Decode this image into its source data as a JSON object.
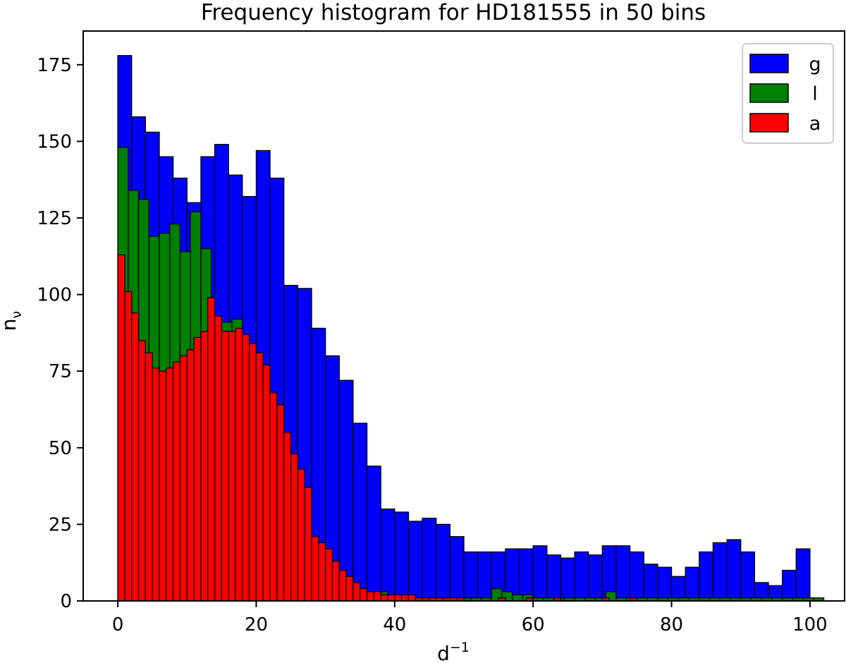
{
  "chart_data": {
    "type": "bar",
    "title": "Frequency histogram for HD181555 in 50 bins",
    "xlabel": "d",
    "xlabel_superscript": "−1",
    "ylabel": "n",
    "ylabel_subscript": "ν",
    "xlim": [
      -5,
      105
    ],
    "ylim": [
      0,
      186
    ],
    "xticks": [
      0,
      20,
      40,
      60,
      80,
      100
    ],
    "yticks": [
      0,
      25,
      50,
      75,
      100,
      125,
      150,
      175
    ],
    "grid": false,
    "legend_position": "top-right",
    "series": [
      {
        "name": "g",
        "color": "#0000ff",
        "bin_start": 0,
        "bin_width": 2,
        "values": [
          178,
          158,
          153,
          145,
          138,
          130,
          145,
          149,
          139,
          132,
          147,
          138,
          103,
          102,
          89,
          80,
          72,
          58,
          44,
          30,
          29,
          26,
          27,
          25,
          21,
          16,
          16,
          16,
          17,
          17,
          18,
          15,
          14,
          16,
          15,
          18,
          18,
          16,
          12,
          11,
          8,
          11,
          16,
          19,
          20,
          16,
          6,
          5,
          10,
          17
        ]
      },
      {
        "name": "l",
        "color": "#008000",
        "bin_start": 0,
        "bin_width": 1.5,
        "values": [
          148,
          134,
          131,
          119,
          120,
          123,
          114,
          127,
          115,
          92,
          91,
          92,
          69,
          55,
          53,
          40,
          26,
          17,
          10,
          5,
          4,
          8,
          3,
          2,
          3,
          3,
          1,
          1,
          1,
          1,
          1,
          1,
          1,
          1,
          1,
          1,
          4,
          3,
          2,
          2,
          1,
          1,
          1,
          1,
          1,
          1,
          1,
          3,
          1,
          1,
          1,
          1,
          1,
          1,
          1,
          1,
          1,
          1,
          1,
          1,
          1,
          1,
          1,
          1,
          1,
          1,
          1,
          1
        ]
      },
      {
        "name": "a",
        "color": "#ff0000",
        "bin_start": 0,
        "bin_width": 1,
        "values": [
          113,
          101,
          94,
          85,
          81,
          76,
          75,
          76,
          78,
          80,
          82,
          86,
          88,
          99,
          93,
          88,
          88,
          89,
          87,
          84,
          81,
          77,
          68,
          64,
          55,
          48,
          43,
          37,
          21,
          19,
          17,
          13,
          10,
          8,
          6,
          4,
          3,
          3,
          2,
          2,
          2,
          2,
          2,
          1,
          1,
          1,
          1,
          1,
          1,
          1,
          0,
          0,
          0,
          0,
          0,
          1,
          0,
          0,
          0,
          1,
          0,
          0,
          0,
          1,
          0,
          0,
          0,
          0,
          0,
          0,
          1,
          0,
          0,
          0,
          1,
          0,
          0,
          0,
          0,
          0,
          0,
          0,
          0,
          0,
          0,
          0,
          0,
          0,
          0,
          0,
          0,
          0,
          0,
          0,
          0,
          0,
          0,
          0,
          0,
          0
        ]
      }
    ]
  }
}
